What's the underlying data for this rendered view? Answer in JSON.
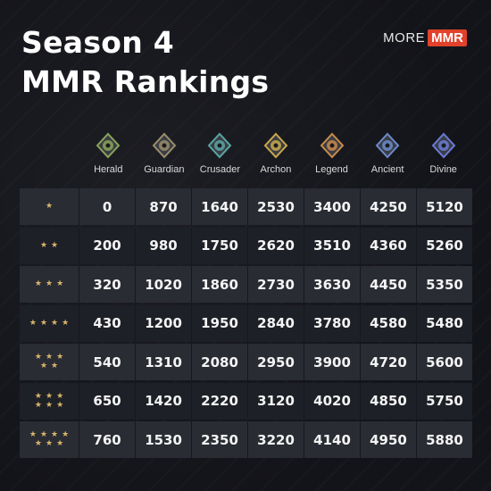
{
  "title_line1": "Season 4",
  "title_line2": "MMR Rankings",
  "brand": {
    "more": "MORE",
    "mmr": "MMR"
  },
  "ranks": [
    {
      "label": "Herald",
      "icon": "herald-medal-icon",
      "color": "#8aa35a"
    },
    {
      "label": "Guardian",
      "icon": "guardian-medal-icon",
      "color": "#9a8d6a"
    },
    {
      "label": "Crusader",
      "icon": "crusader-medal-icon",
      "color": "#5aa6a3"
    },
    {
      "label": "Archon",
      "icon": "archon-medal-icon",
      "color": "#c9a94b"
    },
    {
      "label": "Legend",
      "icon": "legend-medal-icon",
      "color": "#c98a4b"
    },
    {
      "label": "Ancient",
      "icon": "ancient-medal-icon",
      "color": "#6b8bc9"
    },
    {
      "label": "Divine",
      "icon": "divine-medal-icon",
      "color": "#6b7bd6"
    }
  ],
  "rows": [
    {
      "stars": 1,
      "values": [
        "0",
        "870",
        "1640",
        "2530",
        "3400",
        "4250",
        "5120"
      ]
    },
    {
      "stars": 2,
      "values": [
        "200",
        "980",
        "1750",
        "2620",
        "3510",
        "4360",
        "5260"
      ]
    },
    {
      "stars": 3,
      "values": [
        "320",
        "1020",
        "1860",
        "2730",
        "3630",
        "4450",
        "5350"
      ]
    },
    {
      "stars": 4,
      "values": [
        "430",
        "1200",
        "1950",
        "2840",
        "3780",
        "4580",
        "5480"
      ]
    },
    {
      "stars": 5,
      "values": [
        "540",
        "1310",
        "2080",
        "2950",
        "3900",
        "4720",
        "5600"
      ]
    },
    {
      "stars": 6,
      "values": [
        "650",
        "1420",
        "2220",
        "3120",
        "4020",
        "4850",
        "5750"
      ]
    },
    {
      "stars": 7,
      "values": [
        "760",
        "1530",
        "2350",
        "3220",
        "4140",
        "4950",
        "5880"
      ]
    }
  ],
  "colors": {
    "star": "#d9b56a",
    "brand_accent": "#e2412b",
    "row_light": "#2a2c34",
    "row_dark": "#1e2027"
  }
}
